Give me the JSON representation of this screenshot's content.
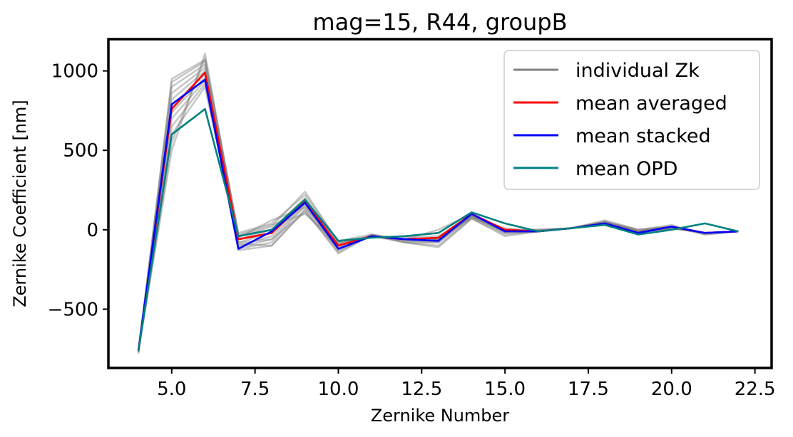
{
  "chart_data": {
    "type": "line",
    "title": "mag=15, R44, groupB",
    "xlabel": "Zernike Number",
    "ylabel": "Zernike Coefficient [nm]",
    "xlim": [
      3.1,
      23.0
    ],
    "ylim": [
      -870,
      1200
    ],
    "xticks": [
      5.0,
      7.5,
      10.0,
      12.5,
      15.0,
      17.5,
      20.0,
      22.5
    ],
    "xtick_labels": [
      "5.0",
      "7.5",
      "10.0",
      "12.5",
      "15.0",
      "17.5",
      "20.0",
      "22.5"
    ],
    "yticks": [
      -500,
      0,
      500,
      1000
    ],
    "ytick_labels": [
      "−500",
      "0",
      "500",
      "1000"
    ],
    "grid": false,
    "legend_position": "top-right",
    "x": [
      4,
      5,
      6,
      7,
      8,
      9,
      10,
      11,
      12,
      13,
      14,
      15,
      16,
      17,
      18,
      19,
      20,
      21,
      22
    ],
    "series": [
      {
        "name": "individual Zk",
        "color": "#808080",
        "values": [
          -765,
          760,
          990,
          -60,
          -20,
          170,
          -100,
          -40,
          -60,
          -60,
          90,
          0,
          -10,
          10,
          40,
          -10,
          20,
          -20,
          -10
        ]
      },
      {
        "name": "mean averaged",
        "color": "#ff0000",
        "values": [
          -760,
          760,
          990,
          -60,
          -20,
          180,
          -100,
          -40,
          -60,
          -50,
          100,
          0,
          -10,
          10,
          40,
          -20,
          20,
          -20,
          -10
        ]
      },
      {
        "name": "mean stacked",
        "color": "#0000ff",
        "values": [
          -760,
          790,
          945,
          -120,
          -10,
          170,
          -120,
          -40,
          -60,
          -70,
          100,
          -10,
          -10,
          10,
          40,
          -20,
          20,
          -20,
          -10
        ]
      },
      {
        "name": "mean OPD",
        "color": "#008080",
        "values": [
          -760,
          600,
          760,
          -40,
          0,
          190,
          -70,
          -50,
          -40,
          -20,
          110,
          40,
          -10,
          10,
          30,
          -30,
          0,
          40,
          -10
        ]
      }
    ],
    "individual_lines": [
      [
        -780,
        950,
        1070,
        -40,
        20,
        240,
        -80,
        -40,
        -80,
        -80,
        80,
        -20,
        -10,
        10,
        50,
        -10,
        20,
        -30,
        -10
      ],
      [
        -770,
        930,
        1060,
        -20,
        40,
        220,
        -70,
        -30,
        -60,
        -60,
        90,
        -10,
        0,
        10,
        50,
        0,
        20,
        -20,
        -10
      ],
      [
        -760,
        900,
        1040,
        -60,
        0,
        200,
        -90,
        -40,
        -70,
        -70,
        100,
        0,
        -10,
        10,
        40,
        -10,
        10,
        -20,
        -10
      ],
      [
        -765,
        860,
        1020,
        -80,
        -20,
        180,
        -100,
        -40,
        -60,
        -60,
        90,
        0,
        -10,
        10,
        40,
        -10,
        20,
        -20,
        -10
      ],
      [
        -760,
        820,
        1000,
        -100,
        -40,
        170,
        -110,
        -40,
        -60,
        -50,
        80,
        10,
        -10,
        10,
        40,
        -20,
        20,
        -20,
        -10
      ],
      [
        -760,
        780,
        980,
        -110,
        -60,
        160,
        -120,
        -40,
        -60,
        -60,
        90,
        0,
        -10,
        10,
        40,
        -20,
        20,
        -20,
        -10
      ],
      [
        -770,
        740,
        960,
        -120,
        -80,
        150,
        -130,
        -40,
        -70,
        -80,
        80,
        -10,
        -10,
        10,
        40,
        -20,
        10,
        -20,
        -10
      ],
      [
        -770,
        700,
        940,
        -130,
        -100,
        130,
        -140,
        -30,
        -80,
        -100,
        70,
        -30,
        -10,
        10,
        50,
        -10,
        10,
        -20,
        -10
      ],
      [
        -765,
        650,
        920,
        -90,
        -100,
        120,
        -150,
        -30,
        -80,
        -110,
        70,
        -40,
        -10,
        10,
        50,
        -10,
        10,
        -20,
        -10
      ],
      [
        -760,
        600,
        900,
        -80,
        -60,
        110,
        -120,
        -40,
        -60,
        -60,
        80,
        -20,
        -10,
        10,
        50,
        -10,
        10,
        -20,
        -10
      ],
      [
        -760,
        500,
        1110,
        -50,
        60,
        140,
        -90,
        -40,
        -60,
        0,
        100,
        0,
        0,
        10,
        60,
        0,
        30,
        -30,
        -10
      ],
      [
        -770,
        550,
        1080,
        -30,
        30,
        100,
        -80,
        -40,
        -50,
        -40,
        90,
        -10,
        0,
        10,
        50,
        0,
        20,
        -20,
        -10
      ]
    ]
  }
}
